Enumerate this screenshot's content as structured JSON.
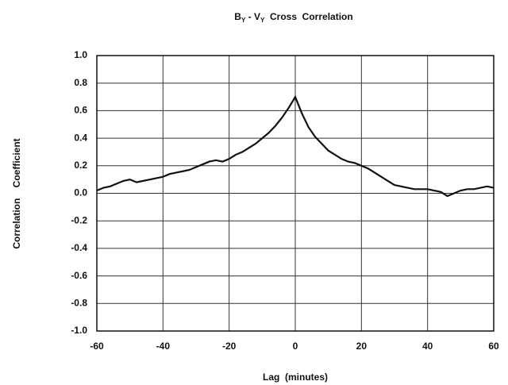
{
  "chart_data": {
    "type": "line",
    "title": [
      "B",
      "Y",
      " - V",
      "Y",
      "  Cross  Correlation"
    ],
    "x_label": "Lag  (minutes)",
    "y_label": "Correlation    Coefficient",
    "x": [
      -60,
      -58,
      -56,
      -54,
      -52,
      -50,
      -48,
      -46,
      -44,
      -42,
      -40,
      -38,
      -36,
      -34,
      -32,
      -30,
      -28,
      -26,
      -24,
      -22,
      -20,
      -18,
      -16,
      -14,
      -12,
      -10,
      -8,
      -6,
      -4,
      -2,
      0,
      2,
      4,
      6,
      8,
      10,
      12,
      14,
      16,
      18,
      20,
      22,
      24,
      26,
      28,
      30,
      32,
      34,
      36,
      38,
      40,
      42,
      44,
      46,
      48,
      50,
      52,
      54,
      56,
      58,
      60
    ],
    "series": [
      {
        "color": "#111111",
        "values": [
          0.02,
          0.04,
          0.05,
          0.07,
          0.09,
          0.1,
          0.08,
          0.09,
          0.1,
          0.11,
          0.12,
          0.14,
          0.15,
          0.16,
          0.17,
          0.19,
          0.21,
          0.23,
          0.24,
          0.23,
          0.25,
          0.28,
          0.3,
          0.33,
          0.36,
          0.4,
          0.44,
          0.49,
          0.55,
          0.62,
          0.7,
          0.58,
          0.48,
          0.41,
          0.36,
          0.31,
          0.28,
          0.25,
          0.23,
          0.22,
          0.2,
          0.18,
          0.15,
          0.12,
          0.09,
          0.06,
          0.05,
          0.04,
          0.03,
          0.03,
          0.03,
          0.02,
          0.01,
          -0.02,
          0.0,
          0.02,
          0.03,
          0.03,
          0.04,
          0.05,
          0.04
        ]
      }
    ],
    "xlim": [
      -60,
      60
    ],
    "xticks": [
      -60,
      -40,
      -20,
      0,
      20,
      40,
      60
    ],
    "ylim": [
      -1,
      1
    ],
    "yticks": [
      {
        "value": -1,
        "label": "-1.0"
      },
      -0.8,
      -0.6,
      -0.4,
      -0.2,
      {
        "value": 0,
        "label": "0.0"
      },
      0.2,
      0.4,
      0.6,
      0.8,
      {
        "value": 1,
        "label": "1.0"
      }
    ],
    "grid": true
  }
}
